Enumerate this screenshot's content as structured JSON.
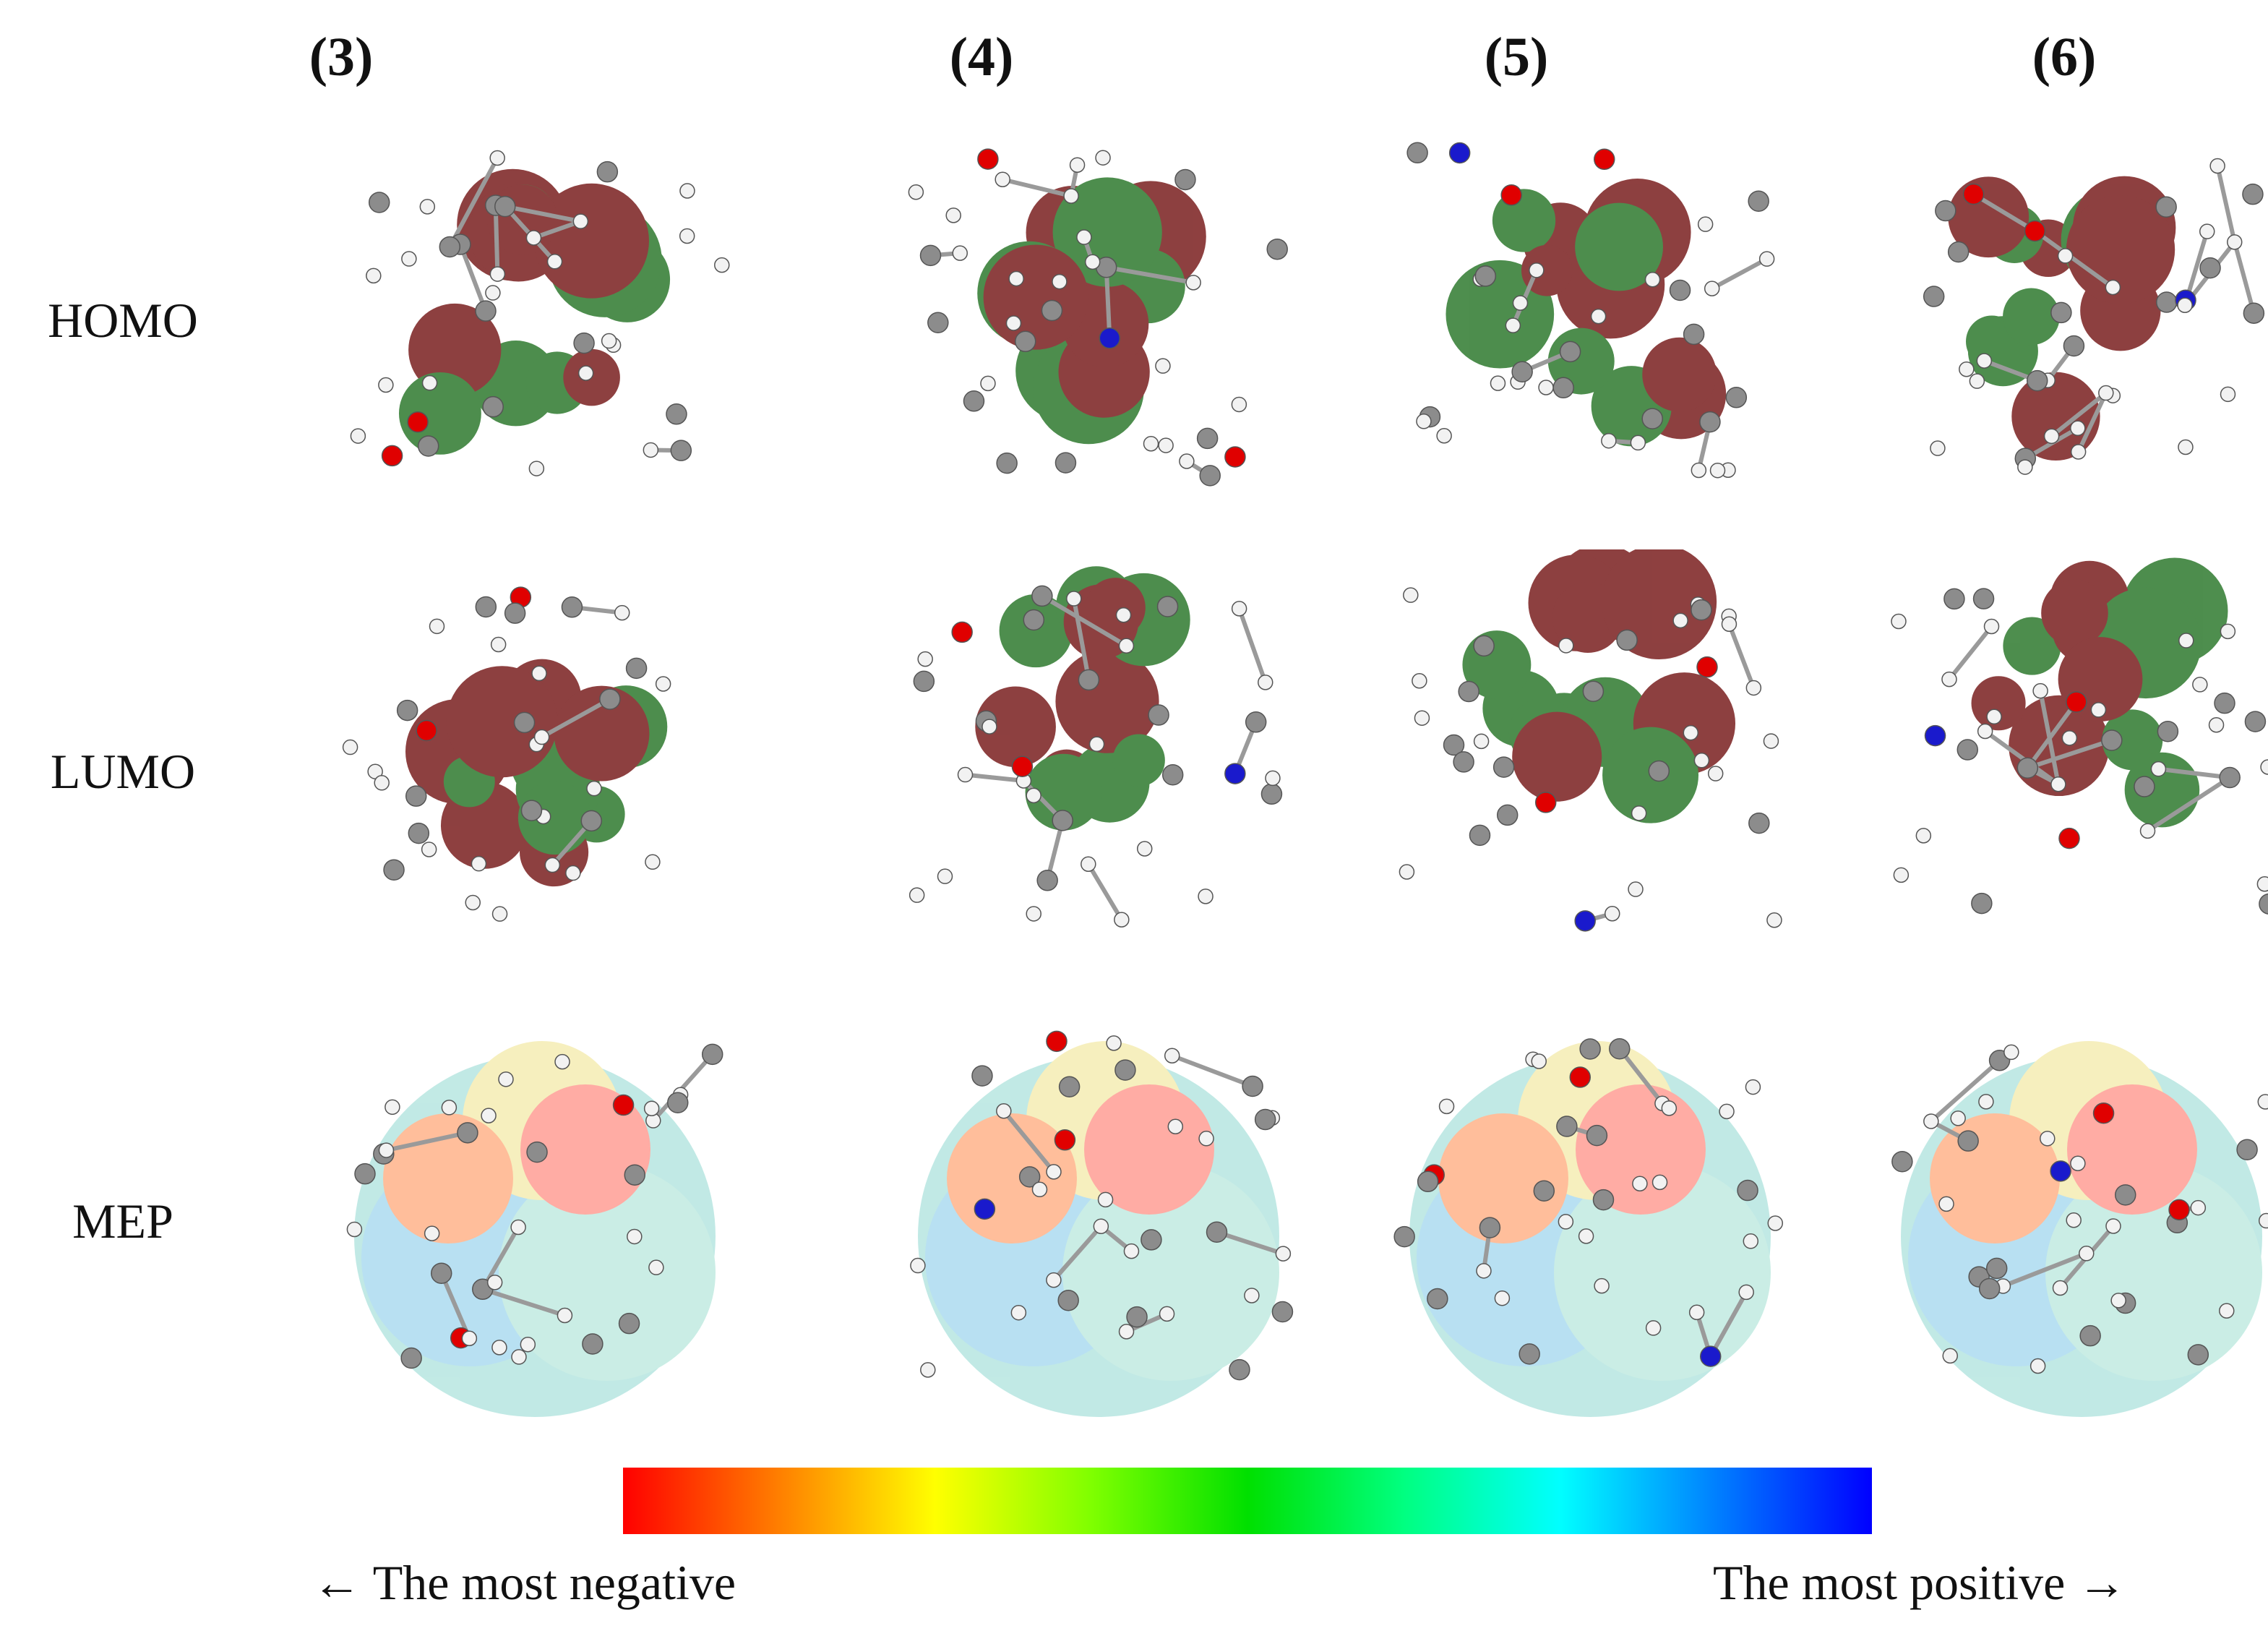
{
  "columns": [
    "(3)",
    "(4)",
    "(5)",
    "(6)"
  ],
  "rows": [
    "HOMO",
    "LUMO",
    "MEP"
  ],
  "colorbar": {
    "left_label": "← The most negative",
    "right_label": "The most positive →",
    "colors": [
      "#ff0000",
      "#ff7f00",
      "#ffff00",
      "#7fff00",
      "#00e000",
      "#00ff80",
      "#00ffff",
      "#0080ff",
      "#0000ff"
    ]
  },
  "orbital_colors": {
    "positive_lobe": "#7a1f1f",
    "negative_lobe": "#2f7a2f"
  },
  "atom_colors": {
    "carbon": "#8c8c8c",
    "hydrogen": "#f2f2f2",
    "oxygen": "#e00000",
    "nitrogen": "#1a1acc"
  }
}
